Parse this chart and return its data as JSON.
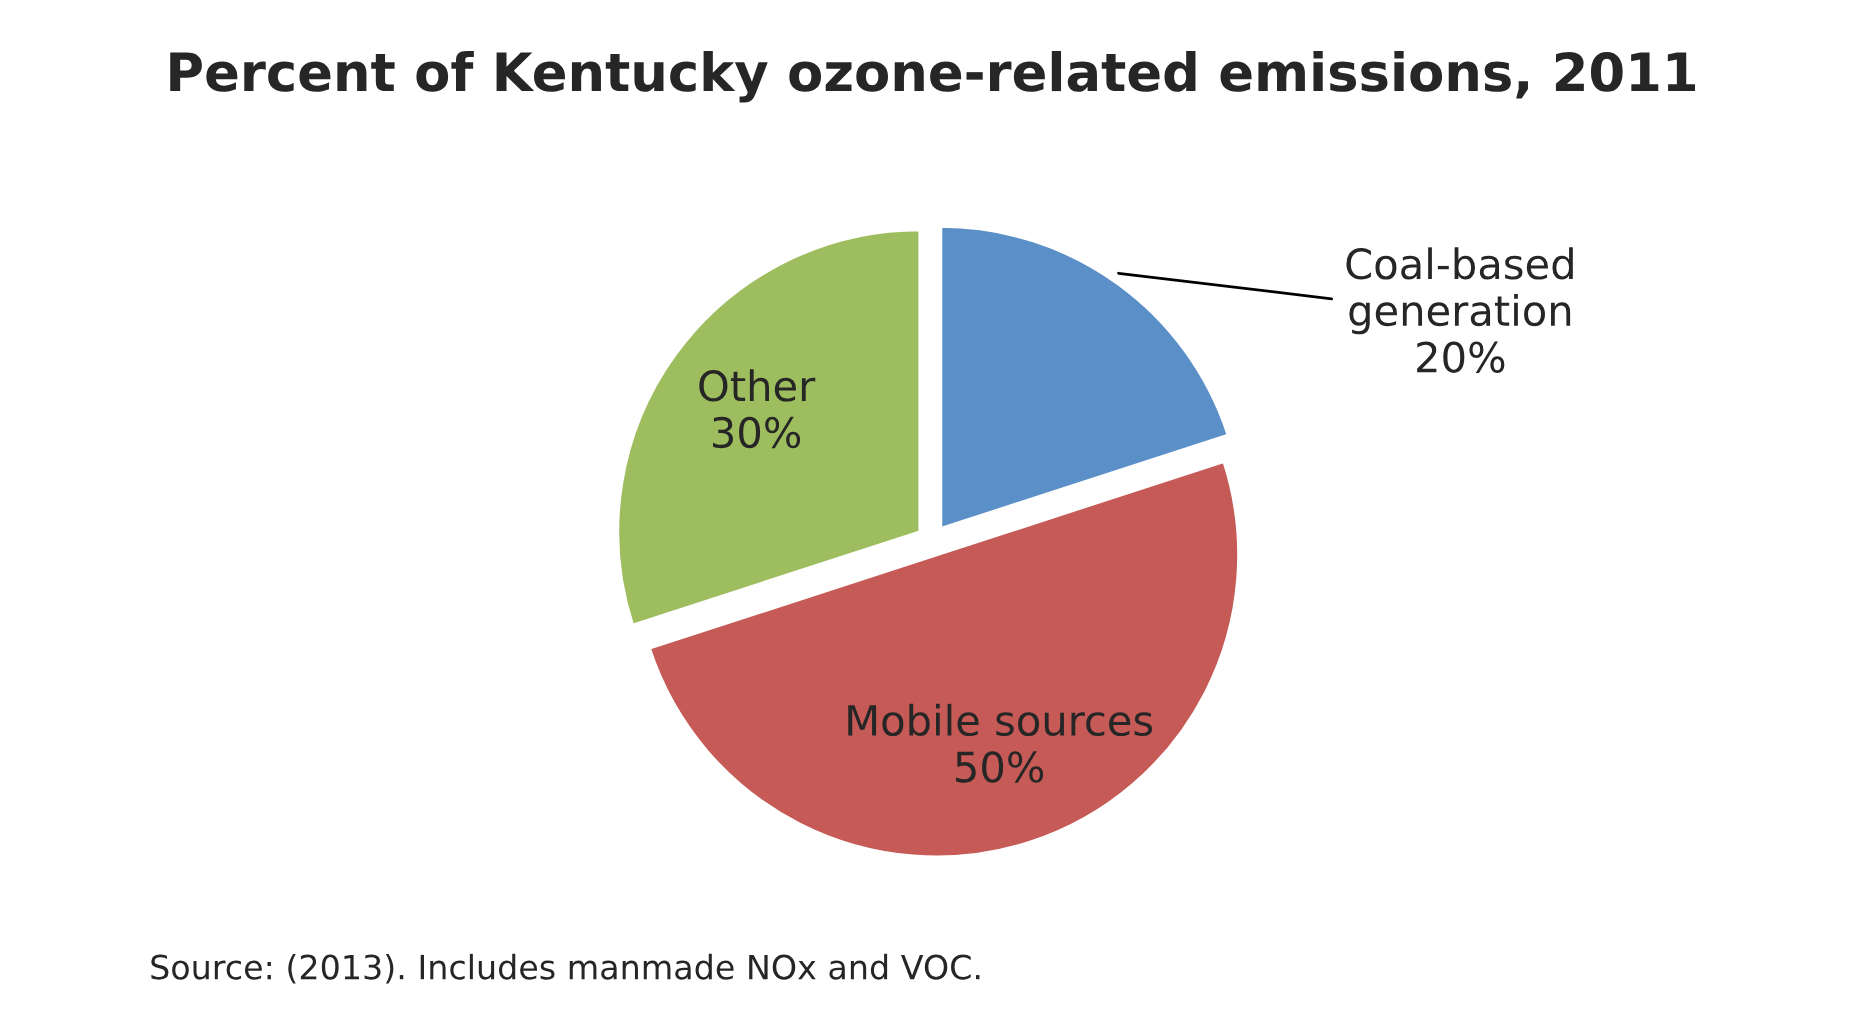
{
  "chart_data": {
    "type": "pie",
    "title": "Percent of Kentucky ozone-related emissions, 2011",
    "categories": [
      "Coal-based\ngeneration",
      "Mobile sources",
      "Other"
    ],
    "values": [
      20,
      50,
      30
    ],
    "value_labels": [
      "20%",
      "50%",
      "30%"
    ],
    "colors": [
      "#5b8fc7",
      "#c55a56",
      "#9dbd5e"
    ],
    "annotations": [
      "Source: (2013). Includes manmade NOx and VOC."
    ]
  }
}
